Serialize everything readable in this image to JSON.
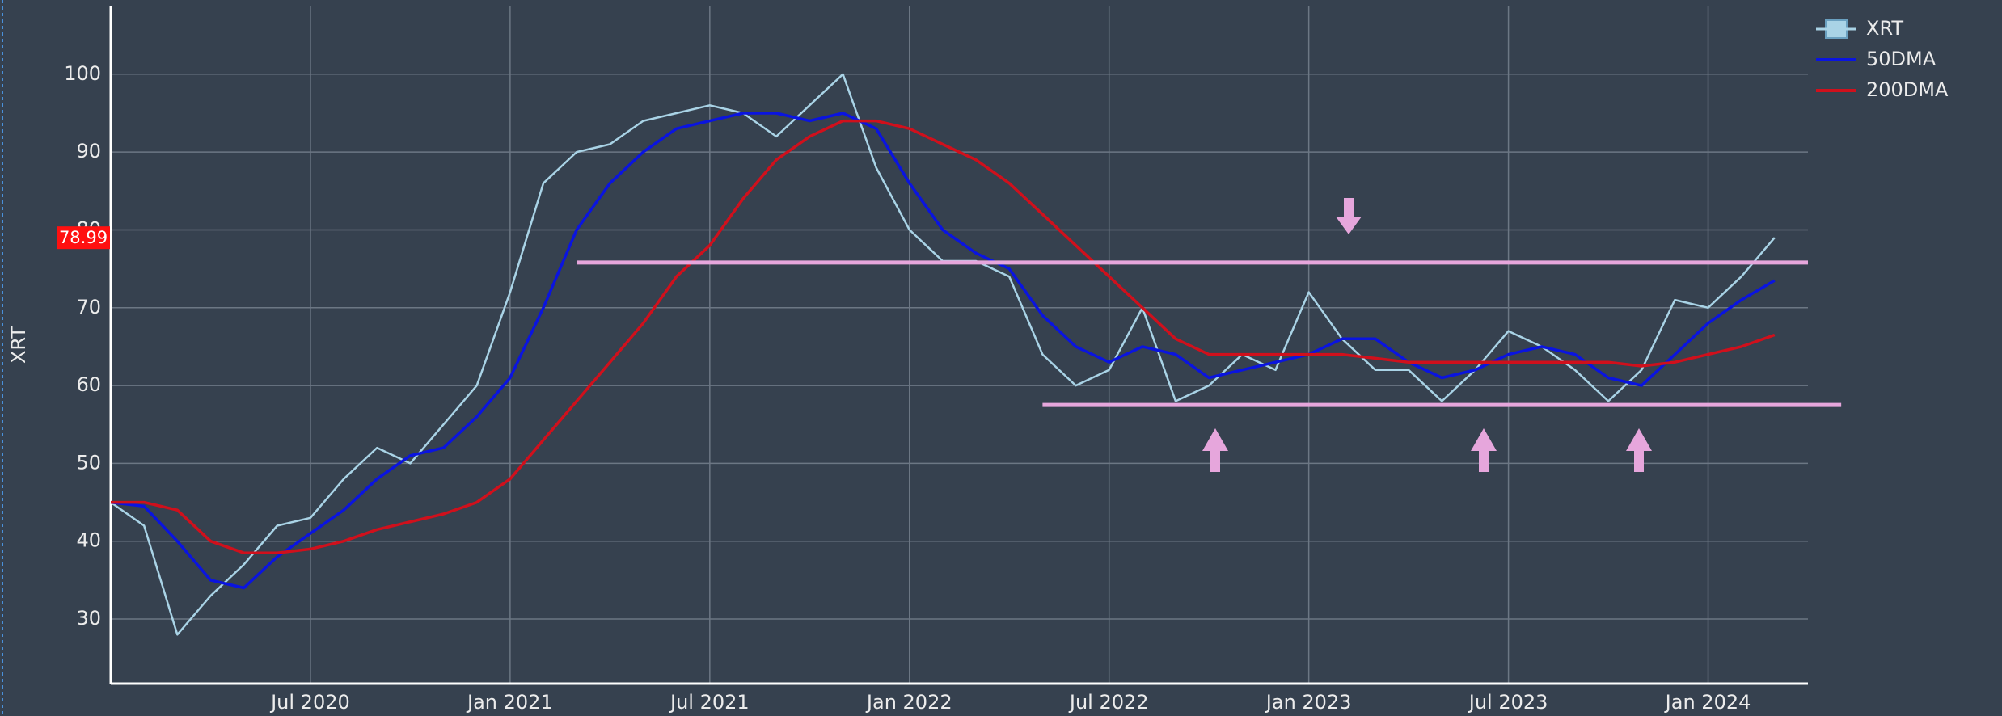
{
  "chart_data": {
    "type": "line",
    "y_label": "XRT",
    "x": [
      "2020-01",
      "2020-02",
      "2020-03",
      "2020-04",
      "2020-05",
      "2020-06",
      "2020-07",
      "2020-08",
      "2020-09",
      "2020-10",
      "2020-11",
      "2020-12",
      "2021-01",
      "2021-02",
      "2021-03",
      "2021-04",
      "2021-05",
      "2021-06",
      "2021-07",
      "2021-08",
      "2021-09",
      "2021-10",
      "2021-11",
      "2021-12",
      "2022-01",
      "2022-02",
      "2022-03",
      "2022-04",
      "2022-05",
      "2022-06",
      "2022-07",
      "2022-08",
      "2022-09",
      "2022-10",
      "2022-11",
      "2022-12",
      "2023-01",
      "2023-02",
      "2023-03",
      "2023-04",
      "2023-05",
      "2023-06",
      "2023-07",
      "2023-08",
      "2023-09",
      "2023-10",
      "2023-11",
      "2023-12",
      "2024-01",
      "2024-02",
      "2024-03"
    ],
    "series": [
      {
        "name": "XRT",
        "color": "#a9d3e6",
        "values": [
          45,
          42,
          28,
          33,
          37,
          42,
          43,
          48,
          52,
          50,
          55,
          60,
          72,
          86,
          90,
          91,
          94,
          95,
          96,
          95,
          92,
          96,
          100,
          88,
          80,
          76,
          76,
          74,
          64,
          60,
          62,
          70,
          58,
          60,
          64,
          62,
          72,
          66,
          62,
          62,
          58,
          62,
          67,
          65,
          62,
          58,
          62,
          71,
          70,
          74,
          79
        ]
      },
      {
        "name": "50DMA",
        "color": "#0a14e0",
        "values": [
          45,
          44.5,
          40,
          35,
          34,
          38,
          41,
          44,
          48,
          51,
          52,
          56,
          61,
          70,
          80,
          86,
          90,
          93,
          94,
          95,
          95,
          94,
          95,
          93,
          86,
          80,
          77,
          75,
          69,
          65,
          63,
          65,
          64,
          61,
          62,
          63,
          64,
          66,
          66,
          63,
          61,
          62,
          64,
          65,
          64,
          61,
          60,
          64,
          68,
          71,
          73.5
        ]
      },
      {
        "name": "200DMA",
        "color": "#d0101c",
        "values": [
          45,
          45,
          44,
          40,
          38.5,
          38.5,
          39,
          40,
          41.5,
          42.5,
          43.5,
          45,
          48,
          53,
          58,
          63,
          68,
          74,
          78,
          84,
          89,
          92,
          94,
          94,
          93,
          91,
          89,
          86,
          82,
          78,
          74,
          70,
          66,
          64,
          64,
          64,
          64,
          64,
          63.5,
          63,
          63,
          63,
          63,
          63,
          63,
          63,
          62.5,
          63,
          64,
          65,
          66.5
        ]
      }
    ],
    "levels": [
      {
        "y": 75.8,
        "x0": "2021-03",
        "x1": "2024-04",
        "color": "#e6a6dc"
      },
      {
        "y": 57.5,
        "x0": "2022-05",
        "x1": "2024-05",
        "color": "#e6a6dc"
      }
    ],
    "last_price": 78.99,
    "xlim": [
      "2020-01",
      "2024-04"
    ],
    "xticks": [
      {
        "value": "2020-07",
        "label": "Jul 2020"
      },
      {
        "value": "2021-01",
        "label": "Jan 2021"
      },
      {
        "value": "2021-07",
        "label": "Jul 2021"
      },
      {
        "value": "2022-01",
        "label": "Jan 2022"
      },
      {
        "value": "2022-07",
        "label": "Jul 2022"
      },
      {
        "value": "2023-01",
        "label": "Jan 2023"
      },
      {
        "value": "2023-07",
        "label": "Jul 2023"
      },
      {
        "value": "2024-01",
        "label": "Jan 2024"
      }
    ],
    "ylim": [
      21.7,
      108.7
    ],
    "yticks": [
      30,
      40,
      50,
      60,
      70,
      80,
      90,
      100
    ],
    "grid": true,
    "legend": "top-right"
  }
}
